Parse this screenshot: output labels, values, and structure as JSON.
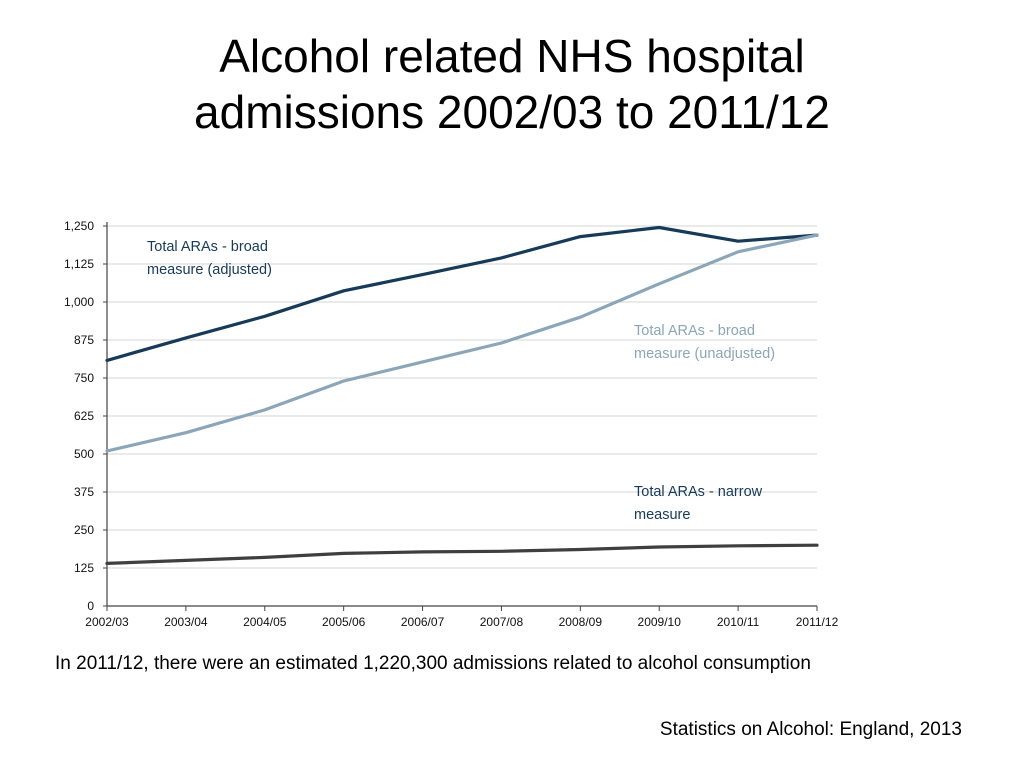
{
  "slide": {
    "title_line1": "Alcohol related NHS hospital",
    "title_line2": "admissions 2002/03 to 2011/12",
    "caption": "In 2011/12, there were an estimated 1,220,300 admissions related to alcohol consumption",
    "source": "Statistics on Alcohol: England, 2013"
  },
  "chart_data": {
    "type": "line",
    "title": "",
    "xlabel": "",
    "ylabel": "",
    "categories": [
      "2002/03",
      "2003/04",
      "2004/05",
      "2005/06",
      "2006/07",
      "2007/08",
      "2008/09",
      "2009/10",
      "2010/11",
      "2011/12"
    ],
    "ylim": [
      0,
      1250
    ],
    "yticks": [
      0,
      125,
      250,
      375,
      500,
      625,
      750,
      875,
      1000,
      1125,
      1250
    ],
    "ytick_labels": [
      "0",
      "125",
      "250",
      "375",
      "500",
      "625",
      "750",
      "875",
      "1,000",
      "1,125",
      "1,250"
    ],
    "grid": true,
    "series": [
      {
        "key": "broad_adjusted",
        "annotation": [
          "Total ARAs - broad",
          "measure (adjusted)"
        ],
        "color": "#163a57",
        "values": [
          808,
          882,
          953,
          1037,
          1090,
          1145,
          1215,
          1245,
          1200,
          1220
        ]
      },
      {
        "key": "broad_unadjusted",
        "annotation": [
          "Total ARAs - broad",
          "measure (unadjusted)"
        ],
        "color": "#8aa6b8",
        "values": [
          510,
          570,
          645,
          740,
          803,
          865,
          950,
          1060,
          1165,
          1220
        ]
      },
      {
        "key": "narrow",
        "annotation": [
          "Total ARAs - narrow",
          "measure"
        ],
        "color": "#3f3f3f",
        "values": [
          140,
          150,
          160,
          173,
          178,
          180,
          186,
          194,
          198,
          200
        ]
      }
    ]
  }
}
